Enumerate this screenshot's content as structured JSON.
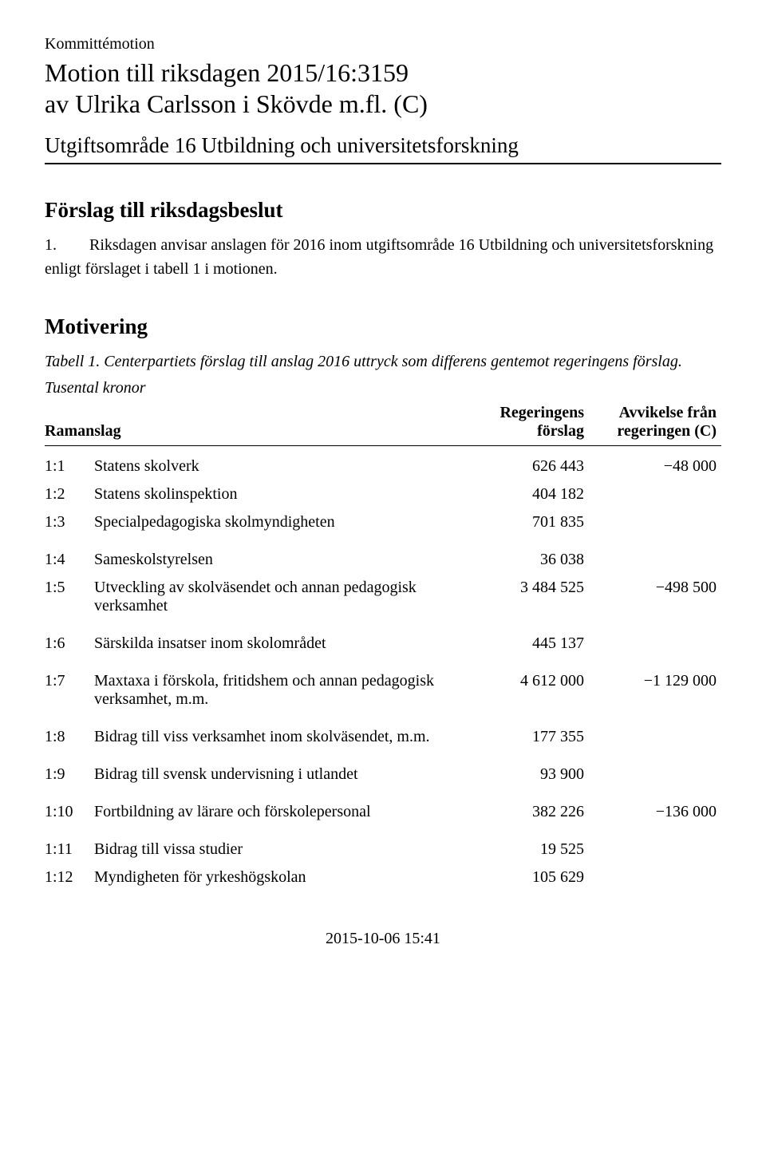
{
  "header": {
    "doc_type": "Kommittémotion",
    "title": "Motion till riksdagen 2015/16:3159",
    "author_line": "av Ulrika Carlsson i Skövde m.fl. (C)",
    "area": "Utgiftsområde 16 Utbildning och universitetsforskning"
  },
  "section_forslag": {
    "heading": "Förslag till riksdagsbeslut",
    "item_number": "1.",
    "item_text": "Riksdagen anvisar anslagen för 2016 inom utgiftsområde 16 Utbildning och universitetsforskning enligt förslaget i tabell 1 i motionen."
  },
  "section_motivering": {
    "heading": "Motivering",
    "caption": "Tabell 1. Centerpartiets förslag till anslag 2016 uttryck som differens gentemot regeringens förslag.",
    "note": "Tusental kronor"
  },
  "table": {
    "columns": {
      "ramanslag": "Ramanslag",
      "regeringens_l1": "Regeringens",
      "regeringens_l2": "förslag",
      "avvikelse_l1": "Avvikelse från",
      "avvikelse_l2": "regeringen (C)"
    },
    "groups": [
      {
        "rows": [
          {
            "code": "1:1",
            "name": "Statens skolverk",
            "value": "626 443",
            "dev": "−48 000"
          },
          {
            "code": "1:2",
            "name": "Statens skolinspektion",
            "value": "404 182",
            "dev": ""
          },
          {
            "code": "1:3",
            "name": "Specialpedagogiska skolmyndigheten",
            "value": "701 835",
            "dev": ""
          }
        ]
      },
      {
        "rows": [
          {
            "code": "1:4",
            "name": "Sameskolstyrelsen",
            "value": "36 038",
            "dev": ""
          },
          {
            "code": "1:5",
            "name": "Utveckling av skolväsendet och annan pedagogisk verksamhet",
            "value": "3 484 525",
            "dev": "−498 500"
          }
        ]
      },
      {
        "rows": [
          {
            "code": "1:6",
            "name": "Särskilda insatser inom skolområdet",
            "value": "445 137",
            "dev": ""
          }
        ]
      },
      {
        "rows": [
          {
            "code": "1:7",
            "name": "Maxtaxa i förskola, fritidshem och annan pedagogisk verksamhet, m.m.",
            "value": "4 612 000",
            "dev": "−1 129 000"
          }
        ]
      },
      {
        "rows": [
          {
            "code": "1:8",
            "name": "Bidrag till viss verksamhet inom skolväsendet, m.m.",
            "value": "177 355",
            "dev": ""
          }
        ]
      },
      {
        "rows": [
          {
            "code": "1:9",
            "name": "Bidrag till svensk undervisning i utlandet",
            "value": "93 900",
            "dev": ""
          }
        ]
      },
      {
        "rows": [
          {
            "code": "1:10",
            "name": "Fortbildning av lärare och förskolepersonal",
            "value": "382 226",
            "dev": "−136 000"
          }
        ]
      },
      {
        "rows": [
          {
            "code": "1:11",
            "name": "Bidrag till vissa studier",
            "value": "19 525",
            "dev": ""
          },
          {
            "code": "1:12",
            "name": "Myndigheten för yrkeshögskolan",
            "value": "105 629",
            "dev": ""
          }
        ]
      }
    ]
  },
  "footer": {
    "timestamp": "2015-10-06 15:41"
  }
}
